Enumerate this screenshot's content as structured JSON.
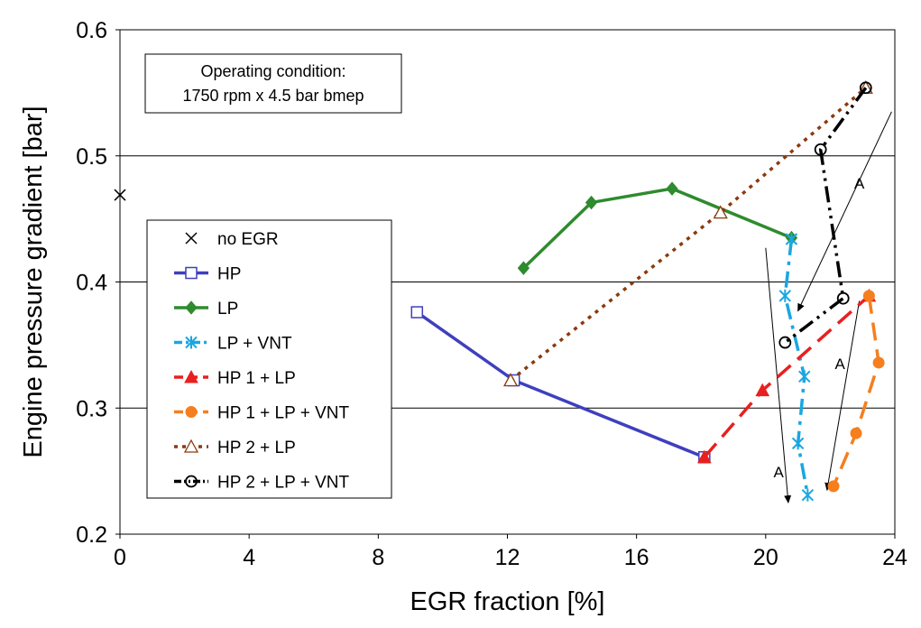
{
  "chart_data": {
    "type": "line",
    "title": "",
    "xlabel": "EGR fraction [%]",
    "ylabel": "Engine pressure gradient [bar]",
    "xlim": [
      0,
      24
    ],
    "ylim": [
      0.2,
      0.6
    ],
    "x_ticks": [
      "0",
      "4",
      "8",
      "12",
      "16",
      "20",
      "24"
    ],
    "y_ticks": [
      "0.2",
      "0.3",
      "0.4",
      "0.5",
      "0.6"
    ],
    "grid": "horizontal",
    "legend_position": "left",
    "note_lines": [
      "Operating condition:",
      "1750 rpm x 4.5 bar bmep"
    ],
    "annotations": [
      {
        "text": "A",
        "x": 22.9,
        "y": 0.474
      },
      {
        "text": "A",
        "x": 22.3,
        "y": 0.331
      },
      {
        "text": "A",
        "x": 20.4,
        "y": 0.245
      }
    ],
    "arrows": [
      {
        "from": [
          23.9,
          0.535
        ],
        "to": [
          21.0,
          0.377
        ]
      },
      {
        "from": [
          22.9,
          0.385
        ],
        "to": [
          21.9,
          0.235
        ]
      },
      {
        "from": [
          20.0,
          0.427
        ],
        "to": [
          20.7,
          0.225
        ]
      }
    ],
    "series": [
      {
        "name": "no EGR",
        "color": "#000000",
        "marker": "x",
        "line": "none",
        "x": [
          0.0
        ],
        "y": [
          0.469
        ]
      },
      {
        "name": "HP",
        "color": "#3f3fbf",
        "marker": "square-open",
        "line": "solid",
        "x": [
          9.2,
          12.2,
          18.1
        ],
        "y": [
          0.376,
          0.322,
          0.261
        ]
      },
      {
        "name": "LP",
        "color": "#2e8b2e",
        "marker": "diamond",
        "line": "solid",
        "x": [
          12.5,
          14.6,
          17.1,
          20.8
        ],
        "y": [
          0.411,
          0.463,
          0.474,
          0.435
        ]
      },
      {
        "name": "LP + VNT",
        "color": "#1aa7e0",
        "marker": "asterisk",
        "line": "dashdot",
        "x": [
          20.8,
          20.6,
          21.2,
          21.0,
          21.3
        ],
        "y": [
          0.434,
          0.389,
          0.325,
          0.272,
          0.231
        ]
      },
      {
        "name": "HP 1 + LP",
        "color": "#e8201f",
        "marker": "triangle",
        "line": "dashed",
        "x": [
          18.1,
          19.9,
          23.2
        ],
        "y": [
          0.261,
          0.314,
          0.389
        ]
      },
      {
        "name": "HP 1 + LP + VNT",
        "color": "#f57f1f",
        "marker": "circle",
        "line": "dashed",
        "x": [
          23.2,
          23.5,
          22.8,
          22.1
        ],
        "y": [
          0.389,
          0.336,
          0.28,
          0.238
        ]
      },
      {
        "name": "HP 2 + LP",
        "color": "#8b3a0e",
        "marker": "triangle-open",
        "line": "dotted",
        "x": [
          12.1,
          18.6,
          23.1
        ],
        "y": [
          0.322,
          0.455,
          0.554
        ]
      },
      {
        "name": "HP 2 + LP + VNT",
        "color": "#000000",
        "marker": "circle-open",
        "line": "dashdotdot",
        "x": [
          23.1,
          21.7,
          22.4,
          20.6
        ],
        "y": [
          0.554,
          0.505,
          0.387,
          0.352
        ]
      }
    ]
  }
}
